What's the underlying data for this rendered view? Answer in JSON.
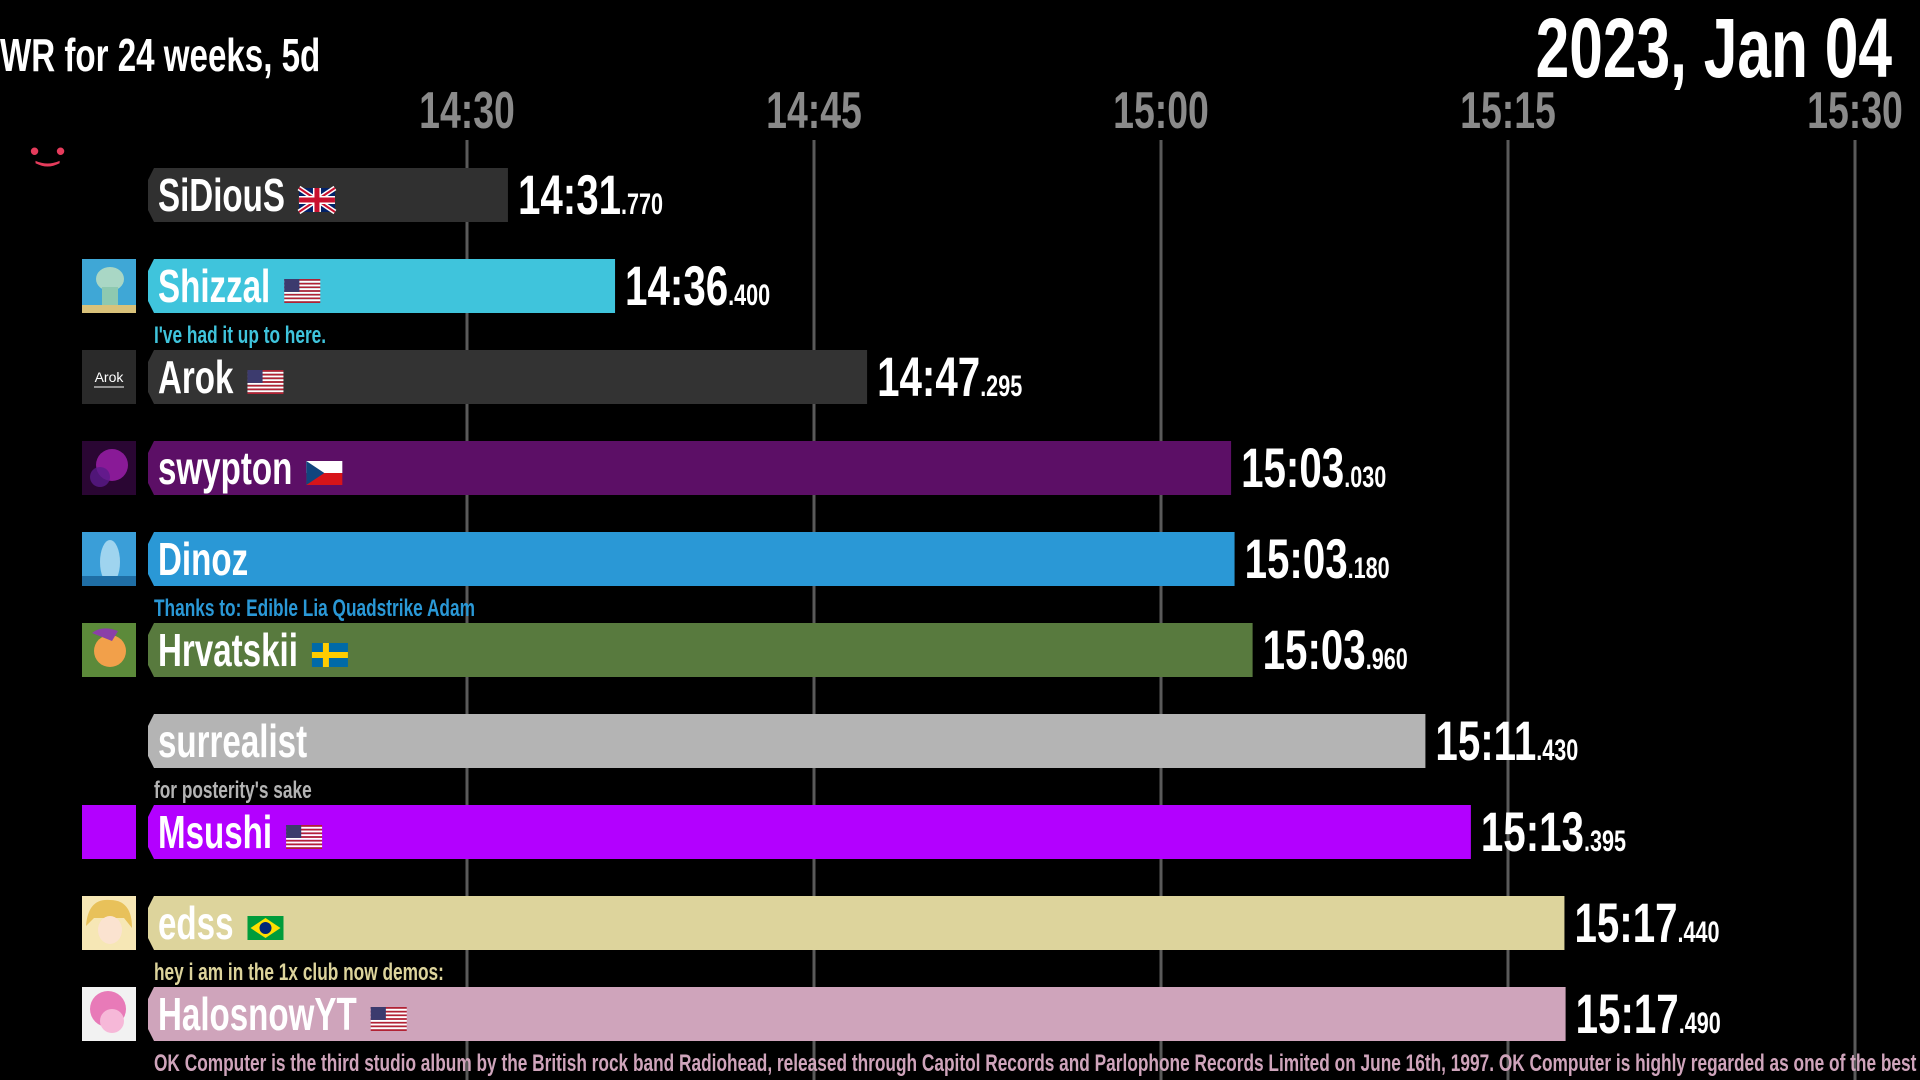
{
  "header": {
    "title": "WR for 24 weeks, 5d",
    "date": "2023, Jan 04"
  },
  "decor": {
    "emoticon": "•‿•"
  },
  "chart_data": {
    "type": "bar",
    "orientation": "horizontal",
    "x_ticks": [
      "14:30",
      "14:45",
      "15:00",
      "15:15",
      "15:30"
    ],
    "x_tick_seconds": [
      870,
      885,
      900,
      915,
      930
    ],
    "grid": true,
    "entries": [
      {
        "name": "SiDiouS",
        "flag": "gb",
        "time_main": "14:31",
        "time_ms": ".770",
        "seconds": 871.77,
        "color": "#303030",
        "avatar": "none",
        "comment": ""
      },
      {
        "name": "Shizzal",
        "flag": "us",
        "time_main": "14:36",
        "time_ms": ".400",
        "seconds": 876.4,
        "color": "#3fc4dc",
        "avatar": "squidward-avatar",
        "comment": "I've had it up to here."
      },
      {
        "name": "Arok",
        "flag": "us",
        "time_main": "14:47",
        "time_ms": ".295",
        "seconds": 887.295,
        "color": "#333333",
        "avatar": "arok-logo",
        "avatar_text": "Arok",
        "comment": ""
      },
      {
        "name": "swypton",
        "flag": "cz",
        "time_main": "15:03",
        "time_ms": ".030",
        "seconds": 903.03,
        "color": "#5c0f66",
        "avatar": "nebula-avatar",
        "comment": ""
      },
      {
        "name": "Dinoz",
        "flag": "",
        "time_main": "15:03",
        "time_ms": ".180",
        "seconds": 903.18,
        "color": "#2a98d6",
        "avatar": "dolphin-avatar",
        "comment": "Thanks to: Edible Lia Quadstrike Adam"
      },
      {
        "name": "Hrvatskii",
        "flag": "se",
        "time_main": "15:03",
        "time_ms": ".960",
        "seconds": 903.96,
        "color": "#587a3e",
        "avatar": "pony-orange-avatar",
        "comment": ""
      },
      {
        "name": "surrealist",
        "flag": "",
        "time_main": "15:11",
        "time_ms": ".430",
        "seconds": 911.43,
        "color": "#b4b4b4",
        "avatar": "none",
        "comment": "for posterity's sake"
      },
      {
        "name": "Msushi",
        "flag": "us",
        "time_main": "15:13",
        "time_ms": ".395",
        "seconds": 913.395,
        "color": "#b300ff",
        "avatar": "purple-square",
        "comment": ""
      },
      {
        "name": "edss",
        "flag": "br",
        "time_main": "15:17",
        "time_ms": ".440",
        "seconds": 917.44,
        "color": "#ddd49c",
        "avatar": "anime-blonde-avatar",
        "comment": "hey i am in the 1x club now demos:"
      },
      {
        "name": "HalosnowYT",
        "flag": "us",
        "time_main": "15:17",
        "time_ms": ".490",
        "seconds": 917.49,
        "color": "#cfa4bb",
        "avatar": "pinkie-pie-avatar",
        "comment": "OK Computer is the third studio album by the British rock band Radiohead, released through Capitol Records and Parlophone Records Limited on June 16th, 1997. OK Computer is highly regarded as one of the best albums"
      }
    ]
  }
}
